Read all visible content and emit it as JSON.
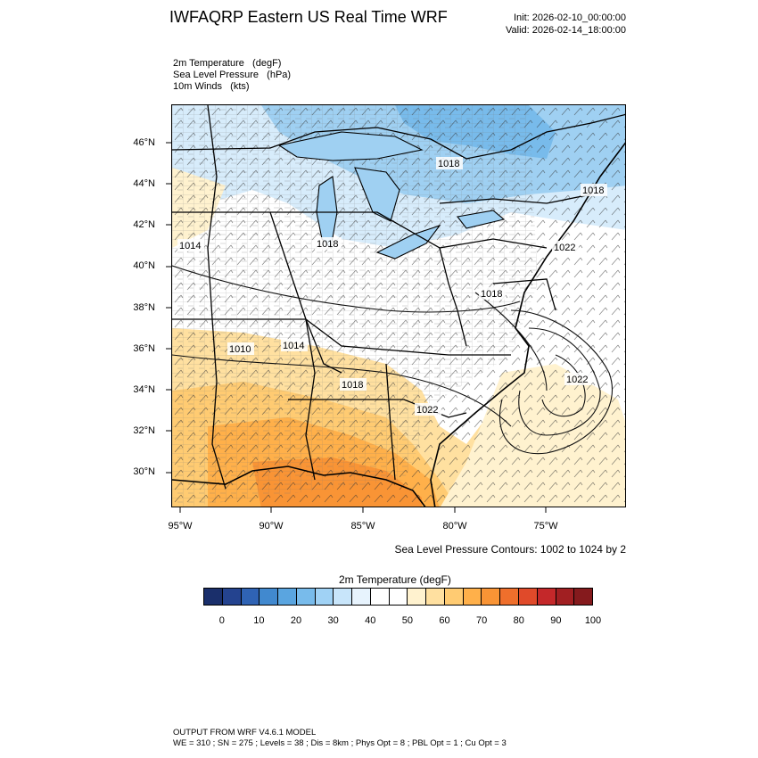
{
  "header": {
    "title": "IWFAQRP Eastern US Real Time WRF",
    "init": "Init: 2026-02-10_00:00:00",
    "valid": "Valid: 2026-02-14_18:00:00"
  },
  "fields": {
    "line1": "2m Temperature   (degF)",
    "line2": "Sea Level Pressure   (hPa)",
    "line3": "10m Winds   (kts)"
  },
  "map": {
    "lat_labels": [
      "46°N",
      "44°N",
      "42°N",
      "40°N",
      "38°N",
      "36°N",
      "34°N",
      "32°N",
      "30°N"
    ],
    "lon_labels": [
      "95°W",
      "90°W",
      "85°W",
      "80°W",
      "75°W"
    ],
    "pressure_labels": [
      "1018",
      "1018",
      "1014",
      "1018",
      "1022",
      "1010",
      "1014",
      "1018",
      "1022",
      "1018",
      "1022"
    ],
    "colors": {
      "cold": "#9fd0f2",
      "cool": "#d7ecfb",
      "mild": "#ffffff",
      "warm": "#ffe6b0",
      "hot": "#fdb35a",
      "hotter": "#f7912c"
    }
  },
  "contour_note": "Sea Level Pressure Contours: 1002 to 1024 by 2",
  "colorbar": {
    "title": "2m Temperature  (degF)",
    "colors": [
      "#1a2f6b",
      "#24438f",
      "#2f63b4",
      "#4189cf",
      "#5aa5e0",
      "#78bbeb",
      "#a0d2f5",
      "#c8e5fa",
      "#e7f3fd",
      "#ffffff",
      "#ffffff",
      "#fff2cf",
      "#ffe0a0",
      "#ffcb72",
      "#ffb04a",
      "#f99435",
      "#ef6f2c",
      "#e04a2a",
      "#c4282a",
      "#a11f22",
      "#851a1d"
    ],
    "labels": [
      "0",
      "10",
      "20",
      "30",
      "40",
      "50",
      "60",
      "70",
      "80",
      "90",
      "100"
    ]
  },
  "footer": {
    "line1": "OUTPUT FROM WRF V4.6.1 MODEL",
    "line2": "WE = 310 ; SN = 275 ; Levels = 38 ; Dis = 8km ; Phys Opt = 8 ; PBL Opt = 1 ; Cu Opt = 3"
  }
}
